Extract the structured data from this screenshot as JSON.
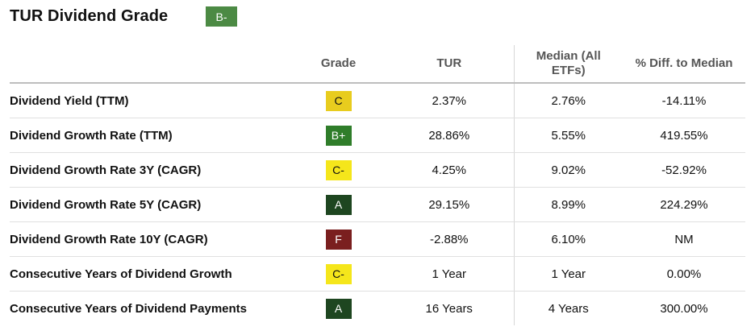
{
  "header": {
    "title": "TUR Dividend Grade",
    "overall_grade": "B-"
  },
  "table": {
    "columns": [
      "",
      "Grade",
      "TUR",
      "Median (All ETFs)",
      "% Diff. to Median"
    ],
    "rows": [
      {
        "metric": "Dividend Yield (TTM)",
        "grade": "C",
        "tur": "2.37%",
        "median": "2.76%",
        "diff": "-14.11%"
      },
      {
        "metric": "Dividend Growth Rate (TTM)",
        "grade": "B+",
        "tur": "28.86%",
        "median": "5.55%",
        "diff": "419.55%"
      },
      {
        "metric": "Dividend Growth Rate 3Y (CAGR)",
        "grade": "C-",
        "tur": "4.25%",
        "median": "9.02%",
        "diff": "-52.92%"
      },
      {
        "metric": "Dividend Growth Rate 5Y (CAGR)",
        "grade": "A",
        "tur": "29.15%",
        "median": "8.99%",
        "diff": "224.29%"
      },
      {
        "metric": "Dividend Growth Rate 10Y (CAGR)",
        "grade": "F",
        "tur": "-2.88%",
        "median": "6.10%",
        "diff": "NM"
      },
      {
        "metric": "Consecutive Years of Dividend Growth",
        "grade": "C-",
        "tur": "1 Year",
        "median": "1 Year",
        "diff": "0.00%"
      },
      {
        "metric": "Consecutive Years of Dividend Payments",
        "grade": "A",
        "tur": "16 Years",
        "median": "4 Years",
        "diff": "300.00%"
      }
    ]
  },
  "grade_colors": {
    "A": {
      "bg": "#1e4620",
      "fg": "#ffffff"
    },
    "B+": {
      "bg": "#2f7d2a",
      "fg": "#ffffff"
    },
    "B-": {
      "bg": "#4c8a44",
      "fg": "#ffffff"
    },
    "C": {
      "bg": "#e8cc1e",
      "fg": "#111111"
    },
    "C-": {
      "bg": "#f5e61b",
      "fg": "#111111"
    },
    "F": {
      "bg": "#7a1f1f",
      "fg": "#ffffff"
    }
  }
}
